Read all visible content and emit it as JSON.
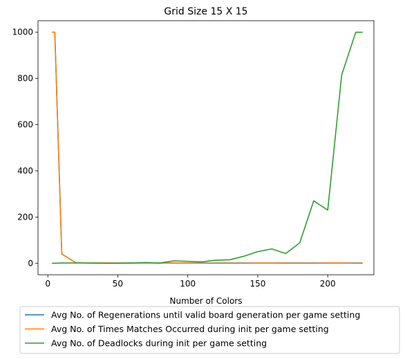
{
  "chart_data": {
    "type": "line",
    "title": "Grid Size 15 X 15",
    "xlabel": "Number of Colors",
    "ylabel": "",
    "xlim": [
      -7,
      233
    ],
    "ylim": [
      -50,
      1050
    ],
    "xticks": [
      0,
      50,
      100,
      150,
      200
    ],
    "yticks": [
      0,
      200,
      400,
      600,
      800,
      1000
    ],
    "grid": false,
    "legend_position": "below",
    "x": [
      3,
      5,
      10,
      20,
      30,
      40,
      50,
      60,
      70,
      80,
      90,
      100,
      110,
      120,
      130,
      140,
      150,
      160,
      170,
      180,
      190,
      200,
      210,
      220,
      225
    ],
    "series": [
      {
        "name": "Avg No. of Regenerations until valid board generation per game setting",
        "color": "#1f77b4",
        "values": [
          1000,
          1000,
          40,
          2,
          1,
          1,
          1,
          1,
          1,
          1,
          1,
          1,
          1,
          1,
          1,
          1,
          1,
          1,
          1,
          1,
          1,
          1,
          1,
          1,
          1
        ]
      },
      {
        "name": "Avg No. of Times Matches Occurred during init per game setting",
        "color": "#ff7f0e",
        "values": [
          1000,
          1000,
          40,
          2,
          1,
          1,
          1,
          1,
          2,
          1,
          1,
          1,
          0,
          0,
          0,
          0,
          1,
          1,
          0,
          0,
          0,
          1,
          1,
          0,
          0
        ]
      },
      {
        "name": "Avg No. of Deadlocks during init per game setting",
        "color": "#2ca02c",
        "values": [
          0,
          0,
          1,
          1,
          1,
          0,
          0,
          1,
          3,
          1,
          10,
          8,
          6,
          13,
          15,
          30,
          50,
          62,
          42,
          88,
          270,
          230,
          815,
          1000,
          1000
        ]
      }
    ]
  }
}
